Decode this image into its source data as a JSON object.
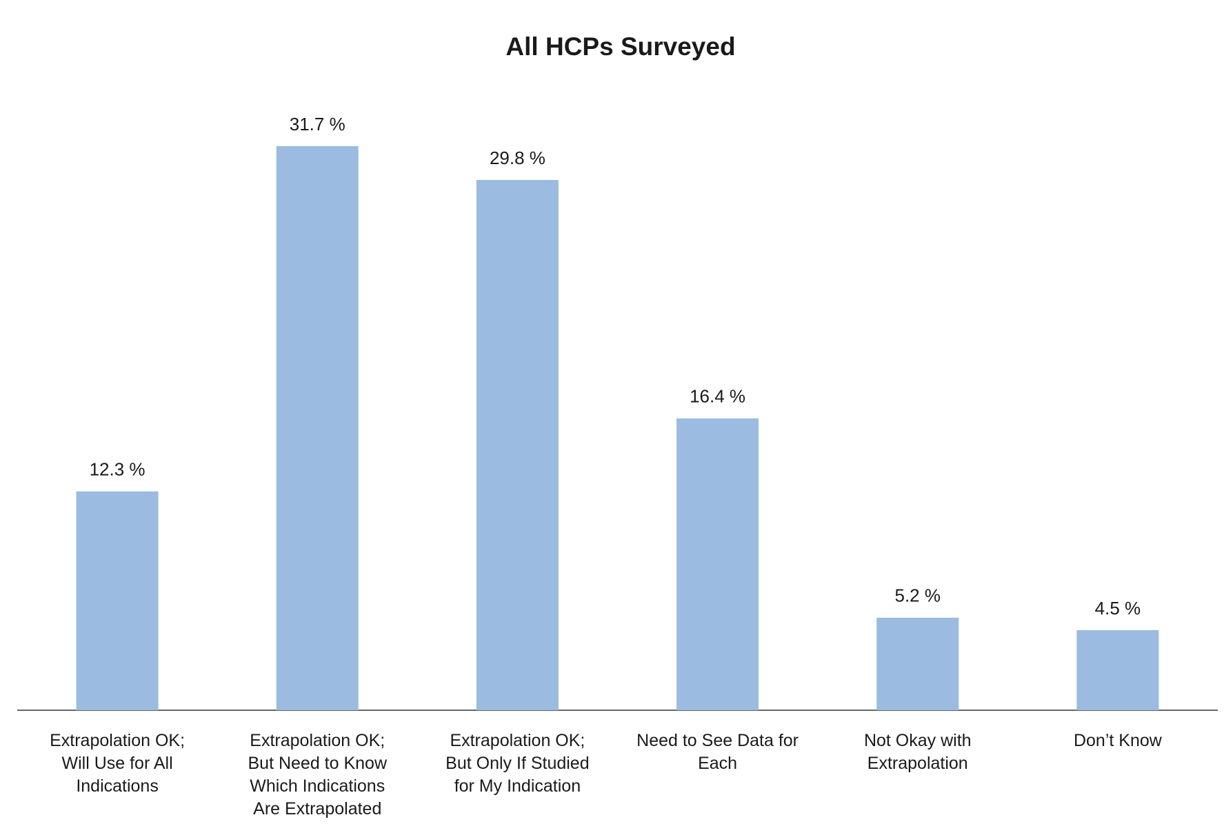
{
  "chart_data": {
    "type": "bar",
    "title": "All HCPs Surveyed",
    "categories": [
      "Extrapolation OK;\nWill Use for All\nIndications",
      "Extrapolation OK;\nBut Need to Know\nWhich Indications\nAre Extrapolated",
      "Extrapolation OK;\nBut Only If Studied\nfor My Indication",
      "Need to See Data for\nEach",
      "Not Okay with\nExtrapolation",
      "Don’t Know"
    ],
    "values": [
      12.3,
      31.7,
      29.8,
      16.4,
      5.2,
      4.5
    ],
    "value_labels": [
      "12.3 %",
      "31.7 %",
      "29.8 %",
      "16.4 %",
      "5.2 %",
      "4.5 %"
    ],
    "color": "#9bbbe0"
  }
}
